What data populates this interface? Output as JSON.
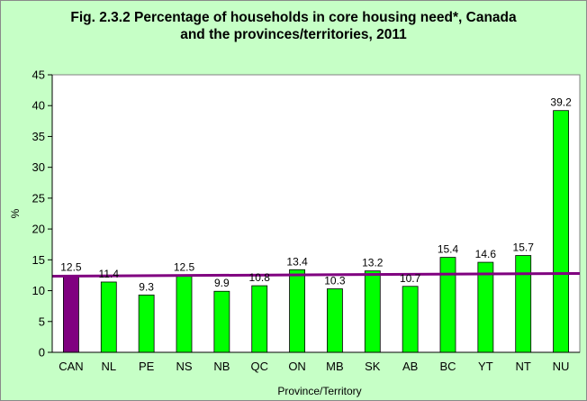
{
  "chart_data": {
    "type": "bar",
    "title_line1": "Fig. 2.3.2 Percentage of households in core housing need*, Canada",
    "title_line2": "and the provinces/territories, 2011",
    "xlabel": "Province/Territory",
    "ylabel": "%",
    "ylim": [
      0,
      45
    ],
    "yticks": [
      0,
      5,
      10,
      15,
      20,
      25,
      30,
      35,
      40,
      45
    ],
    "categories": [
      "CAN",
      "NL",
      "PE",
      "NS",
      "NB",
      "QC",
      "ON",
      "MB",
      "SK",
      "AB",
      "BC",
      "YT",
      "NT",
      "NU"
    ],
    "values": [
      12.5,
      11.4,
      9.3,
      12.5,
      9.9,
      10.8,
      13.4,
      10.3,
      13.2,
      10.7,
      15.4,
      14.6,
      15.7,
      39.2
    ],
    "data_labels": [
      "12.5",
      "11.4",
      "9.3",
      "12.5",
      "9.9",
      "10.8",
      "13.4",
      "10.3",
      "13.2",
      "10.7",
      "15.4",
      "14.6",
      "15.7",
      "39.2"
    ],
    "reference_line": {
      "value": 12.5,
      "color": "#800080"
    },
    "colors": {
      "canada_bar": "#800080",
      "province_bar": "#00ff00",
      "plot_background": "#ffffff",
      "outer_background": "#c6ffc6",
      "grid": "#000000"
    },
    "grid": false,
    "legend": "none"
  }
}
